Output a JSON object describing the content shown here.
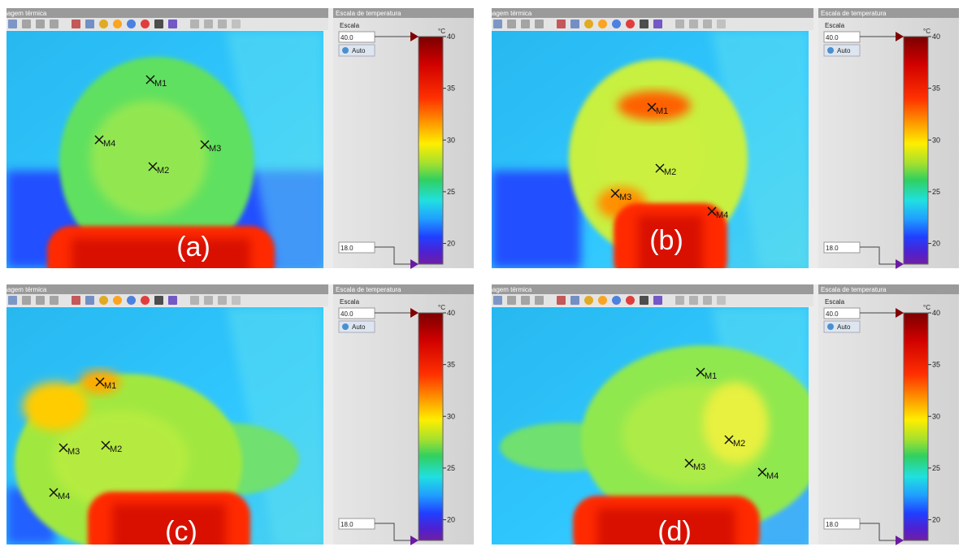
{
  "panels": [
    {
      "header": "Imagem térmica",
      "label": "(a)",
      "markers": [
        "M1",
        "M2",
        "M3",
        "M4"
      ],
      "scale": {
        "title": "Escala de temperatura",
        "scale_label": "Escala",
        "max": {
          "value": 40,
          "label": "40.0"
        },
        "min": {
          "value": 18,
          "label": "18.0"
        },
        "auto": "Auto",
        "unit": "°C",
        "ticks": [
          40,
          35,
          30,
          25,
          20
        ]
      }
    },
    {
      "header": "Imagem térmica",
      "label": "(b)",
      "markers": [
        "M1",
        "M2",
        "M3",
        "M4"
      ],
      "scale": {
        "title": "Escala de temperatura",
        "scale_label": "Escala",
        "max": {
          "value": 40,
          "label": "40.0"
        },
        "min": {
          "value": 18,
          "label": "18.0"
        },
        "auto": "Auto",
        "unit": "°C",
        "ticks": [
          40,
          35,
          30,
          25,
          20
        ]
      }
    },
    {
      "header": "Imagem térmica",
      "label": "(c)",
      "markers": [
        "M1",
        "M2",
        "M3",
        "M4"
      ],
      "scale": {
        "title": "Escala de temperatura",
        "scale_label": "Escala",
        "max": {
          "value": 40,
          "label": "40.0"
        },
        "min": {
          "value": 18,
          "label": "18.0"
        },
        "auto": "Auto",
        "unit": "°C",
        "ticks": [
          40,
          35,
          30,
          25,
          20
        ]
      }
    },
    {
      "header": "Imagem térmica",
      "label": "(d)",
      "markers": [
        "M1",
        "M2",
        "M3",
        "M4"
      ],
      "scale": {
        "title": "Escala de temperatura",
        "scale_label": "Escala",
        "max": {
          "value": 40,
          "label": "40.0"
        },
        "min": {
          "value": 18,
          "label": "18.0"
        },
        "auto": "Auto",
        "unit": "°C",
        "ticks": [
          40,
          35,
          30,
          25,
          20
        ]
      }
    }
  ]
}
